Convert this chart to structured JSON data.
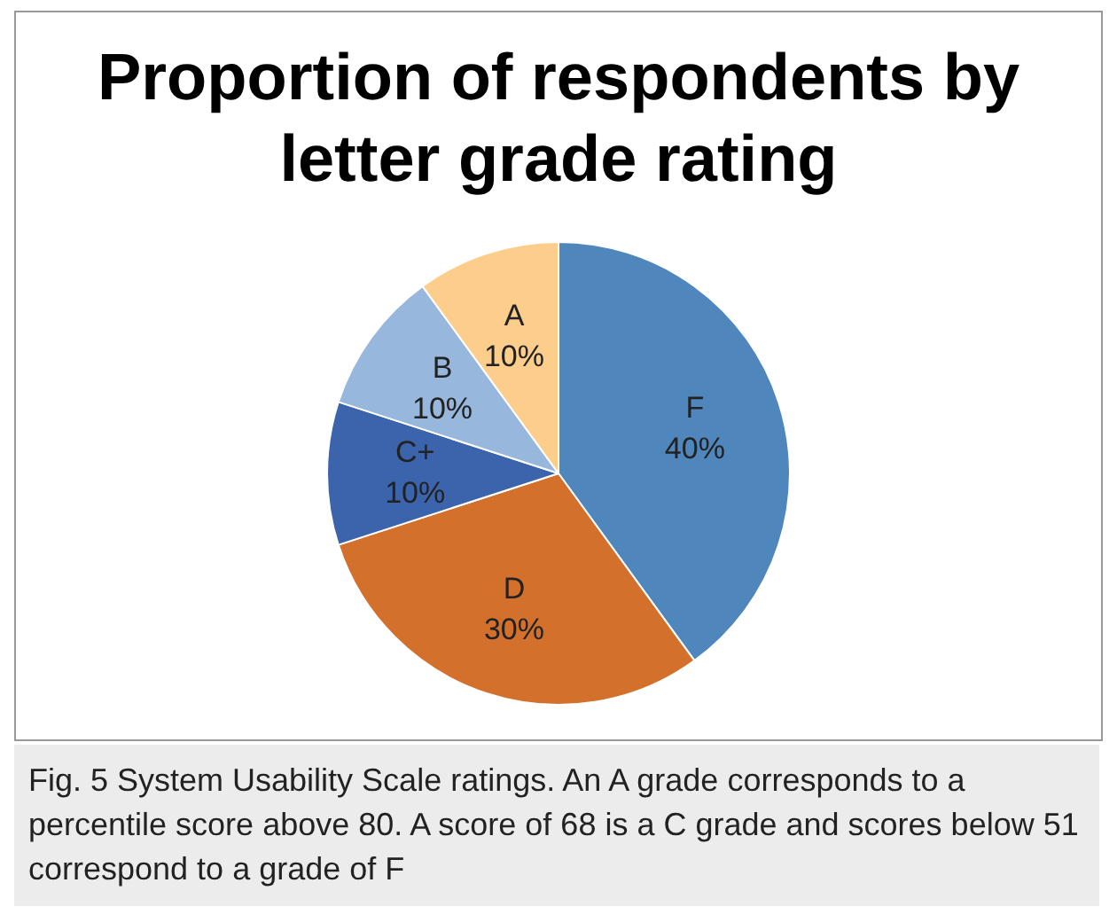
{
  "chart_data": {
    "type": "pie",
    "title": "Proportion of respondents by letter grade rating",
    "categories": [
      "F",
      "D",
      "C+",
      "B",
      "A"
    ],
    "values": [
      40,
      30,
      10,
      10,
      10
    ],
    "value_labels": [
      "40%",
      "30%",
      "10%",
      "10%",
      "10%"
    ],
    "colors": [
      "#4f87bd",
      "#d3712c",
      "#3b64ad",
      "#97b7dd",
      "#fdcd8b"
    ],
    "legend": false,
    "annotations": [
      "Fig. 5 System Usability Scale ratings. An A grade corresponds to a percentile score above 80. A score of 68 is a C grade and scores below 51 correspond to a grade of F"
    ]
  }
}
